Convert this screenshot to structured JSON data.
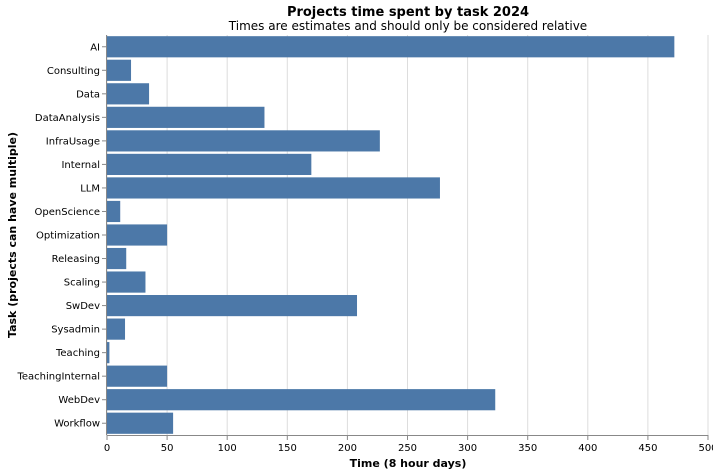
{
  "chart_data": {
    "type": "bar",
    "orientation": "horizontal",
    "title": "Projects time spent by task 2024",
    "subtitle": "Times are estimates and should only be considered relative",
    "xlabel": "Time (8 hour days)",
    "ylabel": "Task (projects can have multiple)",
    "xlim": [
      0,
      500
    ],
    "xticks": [
      0,
      50,
      100,
      150,
      200,
      250,
      300,
      350,
      400,
      450,
      500
    ],
    "grid": true,
    "bar_color": "#4c78a8",
    "categories": [
      "AI",
      "Consulting",
      "Data",
      "DataAnalysis",
      "InfraUsage",
      "Internal",
      "LLM",
      "OpenScience",
      "Optimization",
      "Releasing",
      "Scaling",
      "SwDev",
      "Sysadmin",
      "Teaching",
      "TeachingInternal",
      "WebDev",
      "Workflow"
    ],
    "values": [
      472,
      20,
      35,
      131,
      227,
      170,
      277,
      11,
      50,
      16,
      32,
      208,
      15,
      2,
      50,
      323,
      55
    ]
  }
}
